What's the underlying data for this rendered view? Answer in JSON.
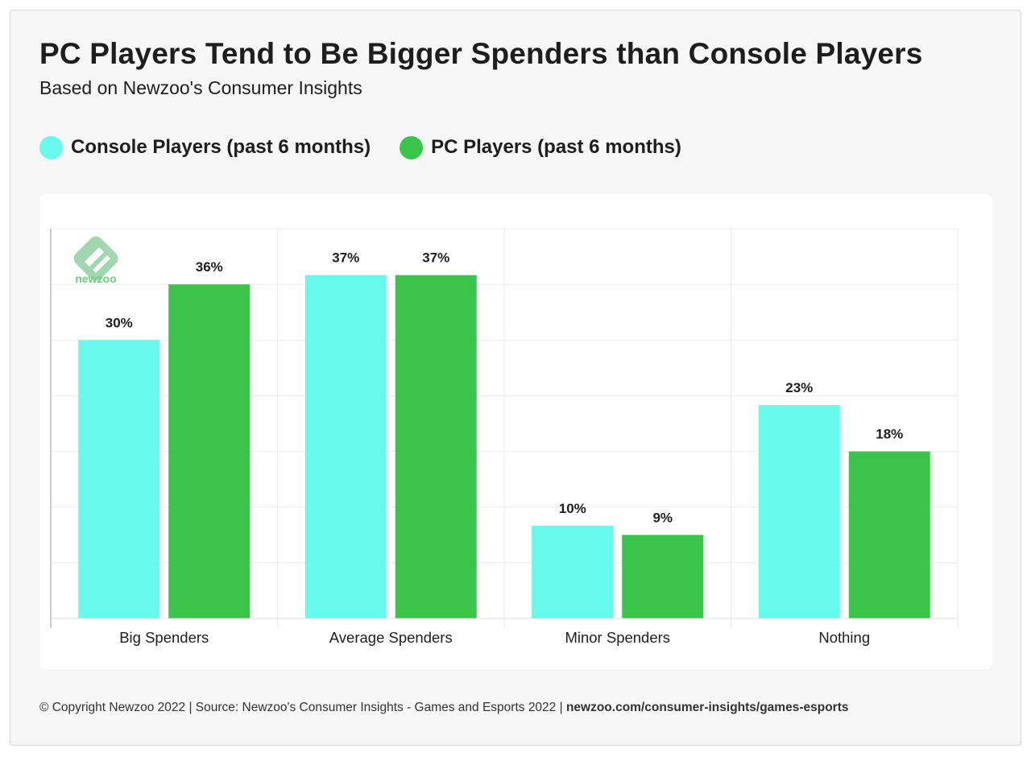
{
  "header": {
    "title": "PC Players Tend to Be Bigger Spenders than Console Players",
    "subtitle": "Based on Newzoo's Consumer Insights"
  },
  "legend": [
    {
      "label": "Console Players (past 6 months)",
      "color": "#66f9ec"
    },
    {
      "label": "PC Players (past 6 months)",
      "color": "#3ac449"
    }
  ],
  "watermark": {
    "text": "newzoo",
    "icon": "newzoo-logo-icon"
  },
  "chart_data": {
    "type": "bar",
    "categories": [
      "Big Spenders",
      "Average Spenders",
      "Minor Spenders",
      "Nothing"
    ],
    "series": [
      {
        "name": "Console Players (past 6 months)",
        "values": [
          30,
          37,
          10,
          23
        ],
        "labels": [
          "30%",
          "37%",
          "10%",
          "23%"
        ],
        "color": "#66f9ec"
      },
      {
        "name": "PC Players (past 6 months)",
        "values": [
          36,
          37,
          9,
          18
        ],
        "labels": [
          "36%",
          "37%",
          "9%",
          "18%"
        ],
        "color": "#3ac449"
      }
    ],
    "ylim": [
      0,
      42
    ],
    "grid": true
  },
  "footer": {
    "text": "© Copyright Newzoo 2022 | Source: Newzoo's Consumer Insights - Games and Esports 2022 | ",
    "link": "newzoo.com/consumer-insights/games-esports"
  }
}
